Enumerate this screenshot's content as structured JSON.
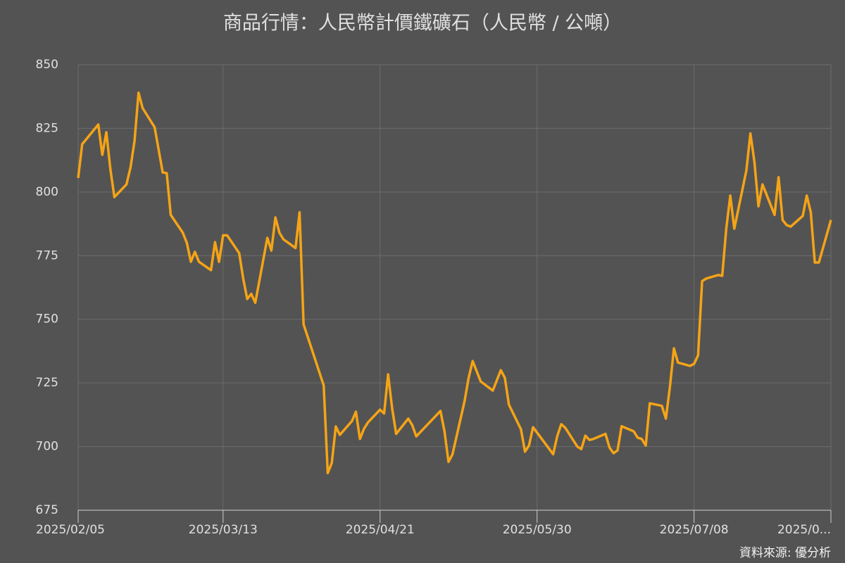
{
  "chart_data": {
    "type": "line",
    "title": "商品行情：人民幣計價鐵礦石（人民幣 / 公噸）",
    "source": "資料來源: 優分析",
    "x": [
      "2025/02/05",
      "2025/02/06",
      "2025/02/10",
      "2025/02/11",
      "2025/02/12",
      "2025/02/13",
      "2025/02/14",
      "2025/02/17",
      "2025/02/18",
      "2025/02/19",
      "2025/02/20",
      "2025/02/21",
      "2025/02/24",
      "2025/02/26",
      "2025/02/27",
      "2025/02/28",
      "2025/03/03",
      "2025/03/04",
      "2025/03/05",
      "2025/03/06",
      "2025/03/07",
      "2025/03/10",
      "2025/03/11",
      "2025/03/12",
      "2025/03/13",
      "2025/03/14",
      "2025/03/17",
      "2025/03/18",
      "2025/03/19",
      "2025/03/20",
      "2025/03/21",
      "2025/03/24",
      "2025/03/25",
      "2025/03/26",
      "2025/03/27",
      "2025/03/28",
      "2025/03/31",
      "2025/04/01",
      "2025/04/02",
      "2025/04/07",
      "2025/04/08",
      "2025/04/09",
      "2025/04/10",
      "2025/04/11",
      "2025/04/14",
      "2025/04/15",
      "2025/04/16",
      "2025/04/17",
      "2025/04/18",
      "2025/04/21",
      "2025/04/22",
      "2025/04/23",
      "2025/04/24",
      "2025/04/25",
      "2025/04/28",
      "2025/04/29",
      "2025/04/30",
      "2025/05/06",
      "2025/05/07",
      "2025/05/08",
      "2025/05/09",
      "2025/05/12",
      "2025/05/13",
      "2025/05/14",
      "2025/05/16",
      "2025/05/19",
      "2025/05/20",
      "2025/05/21",
      "2025/05/22",
      "2025/05/23",
      "2025/05/26",
      "2025/05/27",
      "2025/05/28",
      "2025/05/29",
      "2025/06/03",
      "2025/06/04",
      "2025/06/05",
      "2025/06/06",
      "2025/06/09",
      "2025/06/10",
      "2025/06/11",
      "2025/06/12",
      "2025/06/13",
      "2025/06/16",
      "2025/06/17",
      "2025/06/18",
      "2025/06/19",
      "2025/06/20",
      "2025/06/23",
      "2025/06/24",
      "2025/06/25",
      "2025/06/26",
      "2025/06/27",
      "2025/06/30",
      "2025/07/01",
      "2025/07/02",
      "2025/07/03",
      "2025/07/04",
      "2025/07/07",
      "2025/07/08",
      "2025/07/09",
      "2025/07/10",
      "2025/07/11",
      "2025/07/14",
      "2025/07/15",
      "2025/07/16",
      "2025/07/17",
      "2025/07/18",
      "2025/07/21",
      "2025/07/22",
      "2025/07/23",
      "2025/07/24",
      "2025/07/25",
      "2025/07/28",
      "2025/07/29",
      "2025/07/30",
      "2025/07/31",
      "2025/08/01",
      "2025/08/04",
      "2025/08/05",
      "2025/08/06",
      "2025/08/07",
      "2025/08/08",
      "2025/08/11"
    ],
    "values": [
      805.5,
      818.8,
      826.5,
      814.6,
      823.5,
      809,
      798,
      803,
      809.6,
      820,
      839,
      833,
      825.4,
      807.7,
      807.4,
      791,
      784,
      780,
      772.6,
      776.5,
      772.6,
      769.3,
      780.3,
      772.6,
      783,
      783,
      776,
      766,
      758,
      760,
      756.5,
      782,
      777,
      790,
      784,
      781.4,
      778,
      792,
      748,
      724,
      689.6,
      693.5,
      707.9,
      704.6,
      710,
      713.7,
      703,
      707,
      709.5,
      714.5,
      713,
      728.4,
      715,
      705,
      711,
      708.4,
      704,
      714,
      706,
      694,
      697,
      717.9,
      727,
      733.6,
      725.6,
      722,
      726,
      730,
      727,
      716.5,
      706.8,
      698,
      700.4,
      707.6,
      697,
      704,
      708.8,
      707.4,
      700,
      699,
      704.3,
      702.6,
      703,
      705,
      699.6,
      697.4,
      698.5,
      708,
      706,
      703.5,
      703,
      700.4,
      717,
      716,
      711,
      723.4,
      738.6,
      733,
      731.7,
      732.5,
      735.8,
      765,
      766,
      767.4,
      767.1,
      785.6,
      798.6,
      785.6,
      808.5,
      823,
      811.8,
      794.4,
      803,
      791,
      805.8,
      789,
      787,
      786.4,
      790.6,
      798.6,
      792,
      772.3,
      772.3,
      789
    ],
    "color": "#f5a416",
    "xlim": [
      "2025/02/05",
      "2025/08/11"
    ],
    "xticks": [
      "2025/02/05",
      "2025/03/13",
      "2025/04/21",
      "2025/05/30",
      "2025/07/08",
      {
        "value": "2025/08/11",
        "label": "2025/0..."
      }
    ],
    "ylim": [
      675,
      850
    ],
    "yticks": [
      675,
      700,
      725,
      750,
      775,
      800,
      825,
      850
    ],
    "grid": true
  }
}
